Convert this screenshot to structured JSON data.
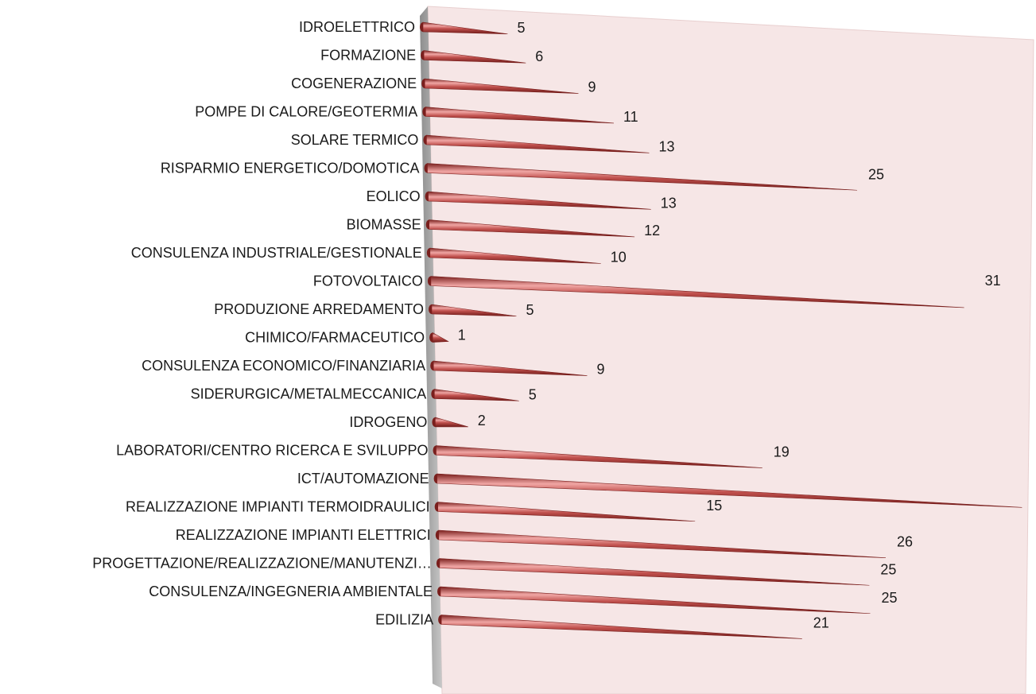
{
  "chart_data": {
    "type": "bar",
    "orientation": "horizontal",
    "style": "3d-cone",
    "categories": [
      "IDROELETTRICO",
      "FORMAZIONE",
      "COGENERAZIONE",
      "POMPE DI CALORE/GEOTERMIA",
      "SOLARE TERMICO",
      "RISPARMIO ENERGETICO/DOMOTICA",
      "EOLICO",
      "BIOMASSE",
      "CONSULENZA INDUSTRIALE/GESTIONALE",
      "FOTOVOLTAICO",
      "PRODUZIONE ARREDAMENTO",
      "CHIMICO/FARMACEUTICO",
      "CONSULENZA ECONOMICO/FINANZIARIA",
      "SIDERURGICA/METALMECCANICA",
      "IDROGENO",
      "LABORATORI/CENTRO RICERCA E SVILUPPO",
      "ICT/AUTOMAZIONE",
      "REALIZZAZIONE IMPIANTI TERMOIDRAULICI",
      "REALIZZAZIONE IMPIANTI ELETTRICI",
      "PROGETTAZIONE/REALIZZAZIONE/MANUTENZI…",
      "CONSULENZA/INGEGNERIA AMBIENTALE",
      "EDILIZIA"
    ],
    "values": [
      5,
      6,
      9,
      11,
      13,
      25,
      13,
      12,
      10,
      31,
      5,
      1,
      9,
      5,
      2,
      19,
      34,
      15,
      26,
      25,
      25,
      21
    ],
    "xlim": [
      0,
      34
    ],
    "grid": false,
    "legend": "none",
    "colors": {
      "bar": "#c0504d",
      "bar_dark": "#7a1f1d",
      "bar_light": "#f0a6a4",
      "back_wall": "#f6e6e6",
      "side_wall": "#a6a6a6"
    }
  }
}
